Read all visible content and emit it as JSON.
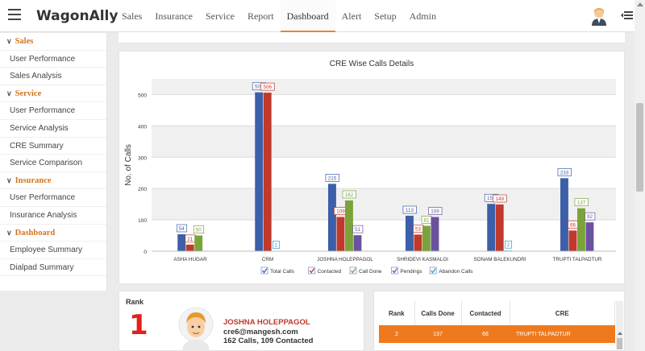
{
  "app": {
    "brand": "WagonAlly"
  },
  "nav": {
    "items": [
      {
        "label": "Sales",
        "active": false
      },
      {
        "label": "Insurance",
        "active": false
      },
      {
        "label": "Service",
        "active": false
      },
      {
        "label": "Report",
        "active": false
      },
      {
        "label": "Dashboard",
        "active": true
      },
      {
        "label": "Alert",
        "active": false
      },
      {
        "label": "Setup",
        "active": false
      },
      {
        "label": "Admin",
        "active": false
      }
    ]
  },
  "sidebar": {
    "items": [
      {
        "label": "Sales",
        "type": "header"
      },
      {
        "label": "User Performance",
        "type": "link"
      },
      {
        "label": "Sales Analysis",
        "type": "link"
      },
      {
        "label": "Service",
        "type": "header"
      },
      {
        "label": "User Performance",
        "type": "link"
      },
      {
        "label": "Service Analysis",
        "type": "link"
      },
      {
        "label": "CRE Summary",
        "type": "link"
      },
      {
        "label": "Service Comparison",
        "type": "link"
      },
      {
        "label": "Insurance",
        "type": "header"
      },
      {
        "label": "User Performance",
        "type": "link"
      },
      {
        "label": "Insurance Analysis",
        "type": "link"
      },
      {
        "label": "Dashboard",
        "type": "header"
      },
      {
        "label": "Employee Summary",
        "type": "link"
      },
      {
        "label": "Dialpad Summary",
        "type": "link"
      }
    ]
  },
  "chart_data": {
    "type": "bar",
    "title": "CRE Wise Calls Details",
    "ylabel": "No. of Calls",
    "xlabel": "",
    "ylim": [
      0,
      550
    ],
    "yticks": [
      0,
      100,
      200,
      300,
      400,
      500
    ],
    "grid": true,
    "legend_position": "bottom",
    "categories": [
      "ASHA HUGAR",
      "CRM",
      "JOSHNA HOLEPPAGOL",
      "SHRIDEVI KASMALGI",
      "SONAM BALEKUNDRI",
      "TRUPTI TALPADTUR"
    ],
    "series": [
      {
        "name": "Total Calls",
        "color": "#3c5fa8",
        "values": [
          54,
          507,
          215,
          113,
          151,
          233
        ]
      },
      {
        "name": "Contacted",
        "color": "#c0392b",
        "values": [
          21,
          506,
          109,
          53,
          149,
          66
        ]
      },
      {
        "name": "Call Done",
        "color": "#7aa33a",
        "values": [
          50,
          0,
          162,
          81,
          0,
          137
        ]
      },
      {
        "name": "Pendings",
        "color": "#6a52a0",
        "values": [
          0,
          0,
          51,
          109,
          0,
          92
        ]
      },
      {
        "name": "Abandon Calls",
        "color": "#3a9bc4",
        "values": [
          0,
          1,
          0,
          0,
          2,
          0
        ]
      }
    ]
  },
  "rank": {
    "label": "Rank",
    "number": "1",
    "name": "JOSHNA HOLEPPAGOL",
    "email": "cre6@mangesh.com",
    "stats": "162 Calls, 109 Contacted"
  },
  "table": {
    "headers": [
      "Rank",
      "Calls Done",
      "Contacted",
      "CRE"
    ],
    "rows": [
      {
        "rank": "2",
        "calls_done": "137",
        "contacted": "66",
        "cre": "TRUPTI TALPADTUR"
      }
    ]
  }
}
